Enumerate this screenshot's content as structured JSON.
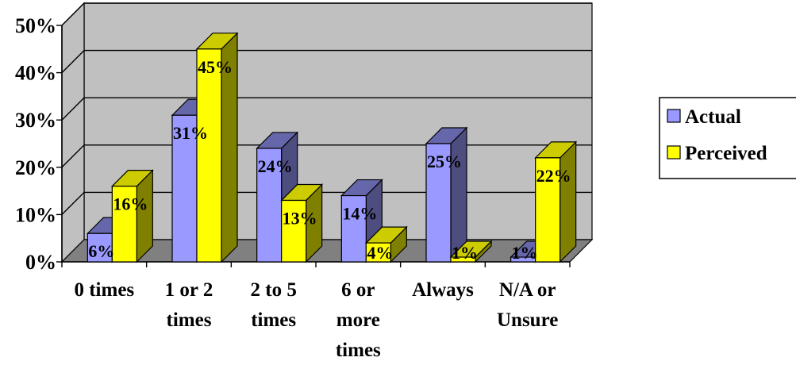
{
  "chart_data": {
    "type": "bar",
    "categories": [
      [
        "0 times"
      ],
      [
        "1 or 2",
        "times"
      ],
      [
        "2 to 5",
        "times"
      ],
      [
        "6 or",
        "more",
        "times"
      ],
      [
        "Always"
      ],
      [
        "N/A or",
        "Unsure"
      ]
    ],
    "series": [
      {
        "name": "Actual",
        "values": [
          6,
          31,
          24,
          14,
          25,
          1
        ],
        "labels": [
          "6%",
          "31%",
          "24%",
          "14%",
          "25%",
          "1%"
        ],
        "colors": {
          "front": "#9999FF",
          "side": "#4D4D80",
          "top": "#6666AA"
        }
      },
      {
        "name": "Perceived",
        "values": [
          16,
          45,
          13,
          4,
          1,
          22
        ],
        "labels": [
          "16%",
          "45%",
          "13%",
          "4%",
          "1%",
          "22%"
        ],
        "colors": {
          "front": "#FFFF00",
          "side": "#808000",
          "top": "#CCCC00"
        }
      }
    ],
    "y_ticks": [
      0,
      10,
      20,
      30,
      40,
      50
    ],
    "y_tick_labels": [
      "0%",
      "10%",
      "20%",
      "30%",
      "40%",
      "50%"
    ],
    "ylim": [
      0,
      50
    ],
    "grid": true,
    "legend_position": "right",
    "wall_color": "#C0C0C0",
    "floor_color": "#808080",
    "title": "",
    "xlabel": "",
    "ylabel": ""
  }
}
